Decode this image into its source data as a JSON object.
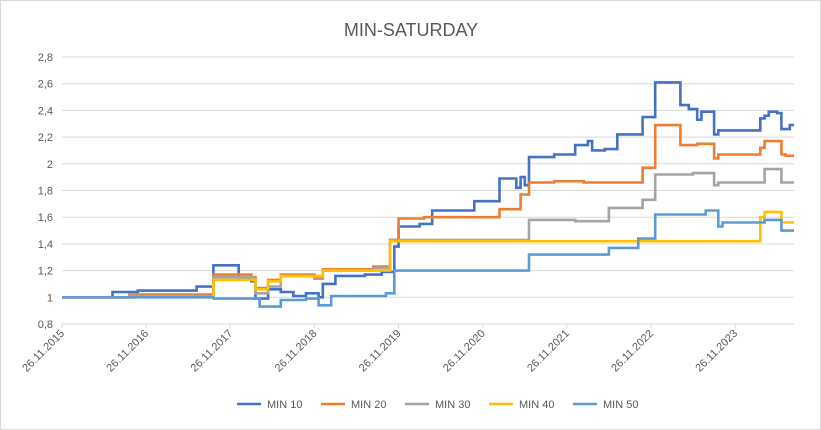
{
  "chart_data": {
    "type": "line",
    "step": true,
    "title": "MIN-SATURDAY",
    "xlabel": "",
    "ylabel": "",
    "x_start": "26.11.2015",
    "x_end": "26.11.2024",
    "x_ticks": [
      "26.11.2015",
      "26.11.2016",
      "26.11.2017",
      "26.11.2018",
      "26.11.2019",
      "26.11.2020",
      "26.11.2021",
      "26.11.2022",
      "26.11.2023"
    ],
    "y_ticks": [
      "0,8",
      "1",
      "1,2",
      "1,4",
      "1,6",
      "1,8",
      "2",
      "2,2",
      "2,4",
      "2,6",
      "2,8"
    ],
    "ylim": [
      0.8,
      2.8
    ],
    "grid": "horizontal",
    "legend_position": "bottom",
    "series": [
      {
        "name": "MIN 10",
        "color": "#4472C4",
        "points": [
          [
            0,
            1.0
          ],
          [
            0.6,
            1.0
          ],
          [
            0.6,
            1.04
          ],
          [
            0.9,
            1.04
          ],
          [
            0.9,
            1.05
          ],
          [
            1.6,
            1.05
          ],
          [
            1.6,
            1.08
          ],
          [
            1.8,
            1.08
          ],
          [
            1.8,
            1.24
          ],
          [
            2.1,
            1.24
          ],
          [
            2.1,
            1.14
          ],
          [
            2.25,
            1.14
          ],
          [
            2.25,
            1.12
          ],
          [
            2.3,
            1.12
          ],
          [
            2.3,
            0.99
          ],
          [
            2.45,
            0.99
          ],
          [
            2.45,
            1.06
          ],
          [
            2.6,
            1.06
          ],
          [
            2.6,
            1.04
          ],
          [
            2.75,
            1.04
          ],
          [
            2.75,
            1.01
          ],
          [
            2.9,
            1.01
          ],
          [
            2.9,
            1.03
          ],
          [
            3.05,
            1.03
          ],
          [
            3.05,
            1.0
          ],
          [
            3.1,
            1.0
          ],
          [
            3.1,
            1.1
          ],
          [
            3.25,
            1.1
          ],
          [
            3.25,
            1.16
          ],
          [
            3.6,
            1.16
          ],
          [
            3.6,
            1.17
          ],
          [
            3.8,
            1.17
          ],
          [
            3.8,
            1.19
          ],
          [
            3.95,
            1.19
          ],
          [
            3.95,
            1.38
          ],
          [
            4.0,
            1.38
          ],
          [
            4.0,
            1.53
          ],
          [
            4.25,
            1.53
          ],
          [
            4.25,
            1.55
          ],
          [
            4.4,
            1.55
          ],
          [
            4.4,
            1.65
          ],
          [
            4.9,
            1.65
          ],
          [
            4.9,
            1.72
          ],
          [
            5.2,
            1.72
          ],
          [
            5.2,
            1.89
          ],
          [
            5.4,
            1.89
          ],
          [
            5.4,
            1.82
          ],
          [
            5.45,
            1.82
          ],
          [
            5.45,
            1.9
          ],
          [
            5.5,
            1.9
          ],
          [
            5.5,
            1.84
          ],
          [
            5.55,
            1.84
          ],
          [
            5.55,
            2.05
          ],
          [
            5.85,
            2.05
          ],
          [
            5.85,
            2.07
          ],
          [
            6.1,
            2.07
          ],
          [
            6.1,
            2.14
          ],
          [
            6.25,
            2.14
          ],
          [
            6.25,
            2.17
          ],
          [
            6.3,
            2.17
          ],
          [
            6.3,
            2.1
          ],
          [
            6.45,
            2.1
          ],
          [
            6.45,
            2.11
          ],
          [
            6.6,
            2.11
          ],
          [
            6.6,
            2.22
          ],
          [
            6.9,
            2.22
          ],
          [
            6.9,
            2.35
          ],
          [
            7.05,
            2.35
          ],
          [
            7.05,
            2.61
          ],
          [
            7.35,
            2.61
          ],
          [
            7.35,
            2.44
          ],
          [
            7.45,
            2.44
          ],
          [
            7.45,
            2.41
          ],
          [
            7.55,
            2.41
          ],
          [
            7.55,
            2.33
          ],
          [
            7.6,
            2.33
          ],
          [
            7.6,
            2.39
          ],
          [
            7.75,
            2.39
          ],
          [
            7.75,
            2.22
          ],
          [
            7.8,
            2.22
          ],
          [
            7.8,
            2.25
          ],
          [
            8.3,
            2.25
          ],
          [
            8.3,
            2.34
          ],
          [
            8.35,
            2.34
          ],
          [
            8.35,
            2.36
          ],
          [
            8.4,
            2.36
          ],
          [
            8.4,
            2.39
          ],
          [
            8.5,
            2.39
          ],
          [
            8.5,
            2.38
          ],
          [
            8.55,
            2.38
          ],
          [
            8.55,
            2.26
          ],
          [
            8.65,
            2.26
          ],
          [
            8.65,
            2.29
          ],
          [
            8.7,
            2.29
          ]
        ]
      },
      {
        "name": "MIN 20",
        "color": "#ED7D31",
        "points": [
          [
            0,
            1.0
          ],
          [
            0.8,
            1.0
          ],
          [
            0.8,
            1.02
          ],
          [
            1.8,
            1.02
          ],
          [
            1.8,
            1.17
          ],
          [
            2.25,
            1.17
          ],
          [
            2.25,
            1.15
          ],
          [
            2.3,
            1.15
          ],
          [
            2.3,
            1.07
          ],
          [
            2.45,
            1.07
          ],
          [
            2.45,
            1.13
          ],
          [
            2.6,
            1.13
          ],
          [
            2.6,
            1.17
          ],
          [
            3.0,
            1.17
          ],
          [
            3.0,
            1.14
          ],
          [
            3.1,
            1.14
          ],
          [
            3.1,
            1.21
          ],
          [
            3.7,
            1.21
          ],
          [
            3.7,
            1.23
          ],
          [
            3.9,
            1.23
          ],
          [
            3.9,
            1.43
          ],
          [
            4.0,
            1.43
          ],
          [
            4.0,
            1.59
          ],
          [
            4.3,
            1.59
          ],
          [
            4.3,
            1.6
          ],
          [
            5.2,
            1.6
          ],
          [
            5.2,
            1.66
          ],
          [
            5.45,
            1.66
          ],
          [
            5.45,
            1.77
          ],
          [
            5.55,
            1.77
          ],
          [
            5.55,
            1.86
          ],
          [
            5.85,
            1.86
          ],
          [
            5.85,
            1.87
          ],
          [
            6.2,
            1.87
          ],
          [
            6.2,
            1.86
          ],
          [
            6.9,
            1.86
          ],
          [
            6.9,
            1.97
          ],
          [
            7.05,
            1.97
          ],
          [
            7.05,
            2.29
          ],
          [
            7.35,
            2.29
          ],
          [
            7.35,
            2.14
          ],
          [
            7.55,
            2.14
          ],
          [
            7.55,
            2.15
          ],
          [
            7.75,
            2.15
          ],
          [
            7.75,
            2.04
          ],
          [
            7.8,
            2.04
          ],
          [
            7.8,
            2.07
          ],
          [
            8.3,
            2.07
          ],
          [
            8.3,
            2.12
          ],
          [
            8.35,
            2.12
          ],
          [
            8.35,
            2.17
          ],
          [
            8.55,
            2.17
          ],
          [
            8.55,
            2.07
          ],
          [
            8.6,
            2.07
          ],
          [
            8.6,
            2.06
          ],
          [
            8.7,
            2.06
          ]
        ]
      },
      {
        "name": "MIN 30",
        "color": "#A5A5A5",
        "points": [
          [
            0,
            1.0
          ],
          [
            0.8,
            1.0
          ],
          [
            0.8,
            1.01
          ],
          [
            1.8,
            1.01
          ],
          [
            1.8,
            1.15
          ],
          [
            2.25,
            1.15
          ],
          [
            2.25,
            1.14
          ],
          [
            2.3,
            1.14
          ],
          [
            2.3,
            1.03
          ],
          [
            2.45,
            1.03
          ],
          [
            2.45,
            1.08
          ],
          [
            2.6,
            1.08
          ],
          [
            2.6,
            1.16
          ],
          [
            3.0,
            1.16
          ],
          [
            3.0,
            1.15
          ],
          [
            3.1,
            1.15
          ],
          [
            3.1,
            1.2
          ],
          [
            3.7,
            1.2
          ],
          [
            3.7,
            1.22
          ],
          [
            3.9,
            1.22
          ],
          [
            3.9,
            1.43
          ],
          [
            5.55,
            1.43
          ],
          [
            5.55,
            1.58
          ],
          [
            6.1,
            1.58
          ],
          [
            6.1,
            1.57
          ],
          [
            6.5,
            1.57
          ],
          [
            6.5,
            1.67
          ],
          [
            6.9,
            1.67
          ],
          [
            6.9,
            1.73
          ],
          [
            7.05,
            1.73
          ],
          [
            7.05,
            1.92
          ],
          [
            7.5,
            1.92
          ],
          [
            7.5,
            1.93
          ],
          [
            7.75,
            1.93
          ],
          [
            7.75,
            1.84
          ],
          [
            7.8,
            1.84
          ],
          [
            7.8,
            1.86
          ],
          [
            8.35,
            1.86
          ],
          [
            8.35,
            1.96
          ],
          [
            8.55,
            1.96
          ],
          [
            8.55,
            1.86
          ],
          [
            8.7,
            1.86
          ]
        ]
      },
      {
        "name": "MIN 40",
        "color": "#FFC000",
        "points": [
          [
            0,
            1.0
          ],
          [
            1.8,
            1.0
          ],
          [
            1.8,
            1.13
          ],
          [
            2.3,
            1.13
          ],
          [
            2.3,
            1.06
          ],
          [
            2.45,
            1.06
          ],
          [
            2.45,
            1.12
          ],
          [
            2.6,
            1.12
          ],
          [
            2.6,
            1.16
          ],
          [
            3.1,
            1.16
          ],
          [
            3.1,
            1.2
          ],
          [
            3.9,
            1.2
          ],
          [
            3.9,
            1.42
          ],
          [
            8.3,
            1.42
          ],
          [
            8.3,
            1.6
          ],
          [
            8.35,
            1.6
          ],
          [
            8.35,
            1.64
          ],
          [
            8.55,
            1.64
          ],
          [
            8.55,
            1.56
          ],
          [
            8.7,
            1.56
          ]
        ]
      },
      {
        "name": "MIN 50",
        "color": "#5B9BD5",
        "points": [
          [
            0,
            1.0
          ],
          [
            1.8,
            1.0
          ],
          [
            1.8,
            0.99
          ],
          [
            2.35,
            0.99
          ],
          [
            2.35,
            0.93
          ],
          [
            2.6,
            0.93
          ],
          [
            2.6,
            0.98
          ],
          [
            2.9,
            0.98
          ],
          [
            2.9,
            0.99
          ],
          [
            3.05,
            0.99
          ],
          [
            3.05,
            0.94
          ],
          [
            3.2,
            0.94
          ],
          [
            3.2,
            1.01
          ],
          [
            3.85,
            1.01
          ],
          [
            3.85,
            1.03
          ],
          [
            3.95,
            1.03
          ],
          [
            3.95,
            1.2
          ],
          [
            5.55,
            1.2
          ],
          [
            5.55,
            1.32
          ],
          [
            6.5,
            1.32
          ],
          [
            6.5,
            1.37
          ],
          [
            6.85,
            1.37
          ],
          [
            6.85,
            1.44
          ],
          [
            7.05,
            1.44
          ],
          [
            7.05,
            1.62
          ],
          [
            7.65,
            1.62
          ],
          [
            7.65,
            1.65
          ],
          [
            7.8,
            1.65
          ],
          [
            7.8,
            1.53
          ],
          [
            7.85,
            1.53
          ],
          [
            7.85,
            1.56
          ],
          [
            8.35,
            1.56
          ],
          [
            8.35,
            1.58
          ],
          [
            8.55,
            1.58
          ],
          [
            8.55,
            1.5
          ],
          [
            8.7,
            1.5
          ]
        ]
      }
    ]
  }
}
